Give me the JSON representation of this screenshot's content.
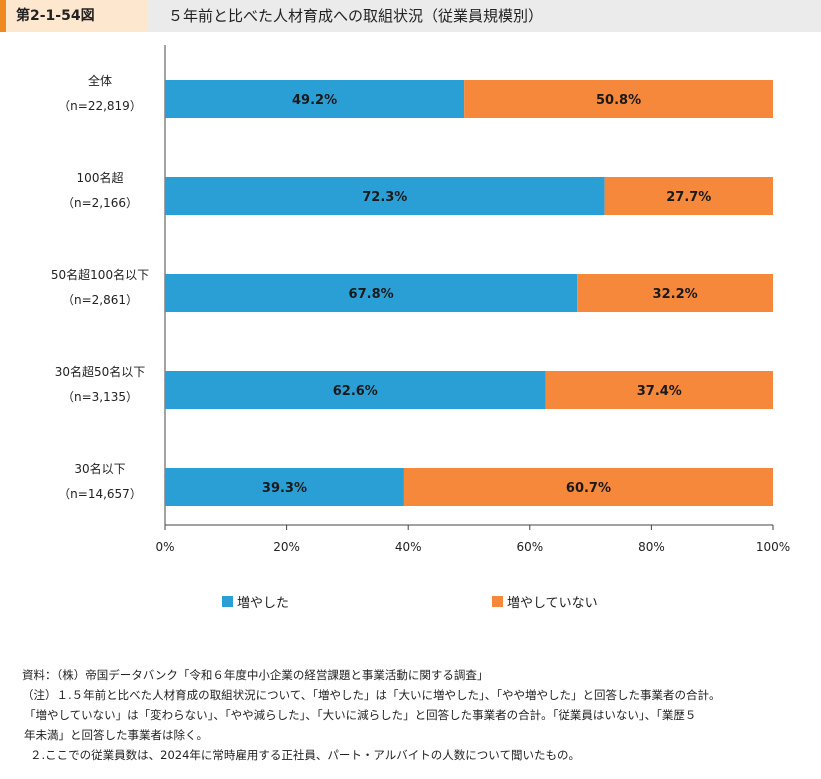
{
  "header": {
    "figure_number": "第2-1-54図",
    "title": "５年前と比べた人材育成への取組状況（従業員規模別）"
  },
  "colors": {
    "increased": "#2a9fd6",
    "not_increased": "#f5883a",
    "accent": "#f08a1e"
  },
  "chart_data": {
    "type": "bar",
    "orientation": "horizontal",
    "stacked": true,
    "categories": [
      {
        "label": "全体",
        "n": "（n=22,819）"
      },
      {
        "label": "100名超",
        "n": "（n=2,166）"
      },
      {
        "label": "50名超100名以下",
        "n": "（n=2,861）"
      },
      {
        "label": "30名超50名以下",
        "n": "（n=3,135）"
      },
      {
        "label": "30名以下",
        "n": "（n=14,657）"
      }
    ],
    "series": [
      {
        "name": "増やした",
        "values": [
          49.2,
          72.3,
          67.8,
          62.6,
          39.3
        ],
        "labels": [
          "49.2%",
          "72.3%",
          "67.8%",
          "62.6%",
          "39.3%"
        ]
      },
      {
        "name": "増やしていない",
        "values": [
          50.8,
          27.7,
          32.2,
          37.4,
          60.7
        ],
        "labels": [
          "50.8%",
          "27.7%",
          "32.2%",
          "37.4%",
          "60.7%"
        ]
      }
    ],
    "xlim": [
      0,
      100
    ],
    "x_ticks": [
      "0%",
      "20%",
      "40%",
      "60%",
      "80%",
      "100%"
    ],
    "x_tick_values": [
      0,
      20,
      40,
      60,
      80,
      100
    ],
    "grid": false,
    "legend_position": "bottom"
  },
  "notes": [
    "資料：（株）帝国データバンク「令和６年度中小企業の経営課題と事業活動に関する調査」",
    "（注）１.５年前と比べた人材育成の取組状況について、「増やした」は「大いに増やした」、「やや増やした」と回答した事業者の合計。",
    "「増やしていない」は「変わらない」、「やや減らした」、「大いに減らした」と回答した事業者の合計。「従業員はいない」、「業歴５",
    "年未満」と回答した事業者は除く。",
    "２.ここでの従業員数は、2024年に常時雇用する正社員、パート・アルバイトの人数について聞いたもの。"
  ]
}
